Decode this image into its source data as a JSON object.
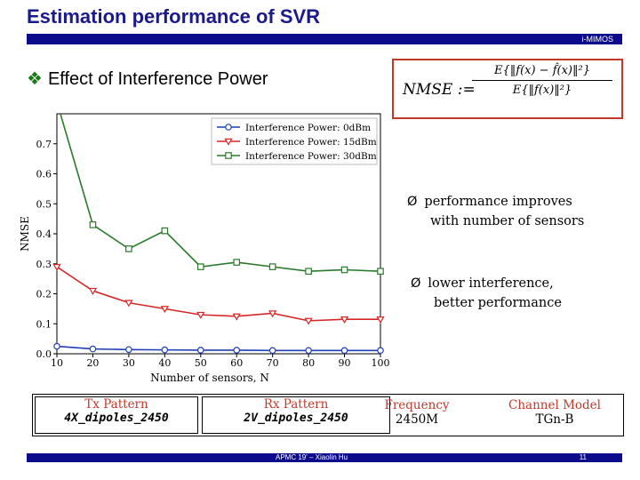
{
  "slide": {
    "title": "Estimation performance of SVR",
    "tag": "i-MIMOS",
    "heading": "Effect of Interference Power",
    "heading_marker": "❖",
    "footer": "APMC 19' – Xiaolin Hu",
    "page": "11"
  },
  "formula": {
    "lhs": "NMSE :=",
    "numerator": "E{‖f(x) − f̂(x)‖²}",
    "denominator": "E{‖f(x)‖²}"
  },
  "notes": [
    {
      "arrow": "Ø",
      "line1": "performance improves",
      "line2": "with number of sensors"
    },
    {
      "arrow": "Ø",
      "line1": "lower interference,",
      "line2": "better performance"
    }
  ],
  "table": {
    "tx": {
      "header": "Tx Pattern",
      "value": "4X_dipoles_2450"
    },
    "rx": {
      "header": "Rx Pattern",
      "value": "2V_dipoles_2450"
    },
    "freq": {
      "header": "Frequency",
      "value": "2450M"
    },
    "channel": {
      "header": "Channel Model",
      "value": "TGn-B"
    }
  },
  "chart_data": {
    "type": "line",
    "xlabel": "Number of sensors, N",
    "ylabel": "NMSE",
    "xlim": [
      10,
      100
    ],
    "ylim": [
      0.0,
      0.8
    ],
    "xticks": [
      10,
      20,
      30,
      40,
      50,
      60,
      70,
      80,
      90,
      100
    ],
    "yticks": [
      0.0,
      0.1,
      0.2,
      0.3,
      0.4,
      0.5,
      0.6,
      0.7
    ],
    "legend_position": "top-right",
    "x": [
      10,
      20,
      30,
      40,
      50,
      60,
      70,
      80,
      90,
      100
    ],
    "series": [
      {
        "name": "Interference Power: 0dBm",
        "color": "#1f3fb5",
        "marker": "circle",
        "values": [
          0.025,
          0.016,
          0.014,
          0.013,
          0.012,
          0.012,
          0.011,
          0.011,
          0.011,
          0.011
        ]
      },
      {
        "name": "Interference Power: 15dBm",
        "color": "#d62728",
        "marker": "triangle-down",
        "values": [
          0.29,
          0.21,
          0.17,
          0.15,
          0.13,
          0.125,
          0.135,
          0.11,
          0.115,
          0.115
        ]
      },
      {
        "name": "Interference Power: 30dBm",
        "color": "#2a7a2a",
        "marker": "square",
        "values": [
          0.84,
          0.43,
          0.35,
          0.41,
          0.29,
          0.305,
          0.29,
          0.275,
          0.28,
          0.275
        ]
      }
    ]
  }
}
